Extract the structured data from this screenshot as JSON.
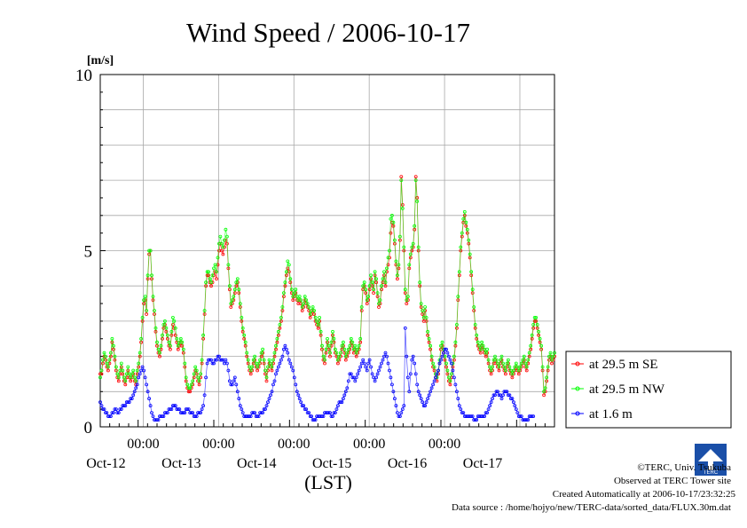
{
  "chart_data": {
    "type": "line",
    "title": "Wind Speed / 2006-10-17",
    "ylabel": "[m/s]",
    "xlabel": "(LST)",
    "ylim": [
      0,
      10
    ],
    "yticks": [
      0,
      5,
      10
    ],
    "xlim_days_label": "Oct-12 to Oct-17 (6 days)",
    "time_tick_label": "00:00",
    "day_labels": [
      "Oct-12",
      "Oct-13",
      "Oct-14",
      "Oct-15",
      "Oct-16",
      "Oct-17"
    ],
    "grid": true,
    "legend_position": "right-bottom",
    "sampling": "30 min",
    "series": [
      {
        "name": "at 29.5 m SE",
        "color": "#ff0000",
        "values": [
          1.5,
          1.5,
          1.8,
          2.0,
          1.9,
          1.7,
          1.6,
          1.8,
          2.0,
          2.4,
          2.2,
          1.9,
          1.6,
          1.4,
          1.3,
          1.5,
          1.7,
          1.5,
          1.3,
          1.2,
          1.4,
          1.6,
          1.4,
          1.3,
          1.4,
          1.5,
          1.3,
          1.2,
          1.5,
          1.7,
          2.0,
          2.4,
          3.0,
          3.5,
          3.6,
          3.2,
          4.2,
          4.9,
          5.0,
          4.2,
          3.6,
          3.2,
          2.7,
          2.3,
          2.1,
          2.0,
          2.2,
          2.5,
          2.8,
          2.9,
          2.7,
          2.5,
          2.3,
          2.2,
          2.6,
          2.9,
          2.8,
          2.6,
          2.4,
          2.2,
          2.3,
          2.4,
          2.3,
          2.1,
          1.7,
          1.3,
          1.1,
          1.0,
          1.0,
          1.1,
          1.2,
          1.4,
          1.6,
          1.5,
          1.3,
          1.2,
          1.4,
          1.8,
          2.5,
          3.2,
          4.0,
          4.3,
          4.3,
          4.1,
          4.0,
          4.1,
          4.3,
          4.4,
          4.2,
          4.6,
          5.0,
          5.2,
          5.0,
          4.9,
          5.1,
          5.3,
          5.2,
          4.5,
          3.9,
          3.4,
          3.5,
          3.6,
          3.8,
          4.0,
          4.1,
          3.8,
          3.4,
          3.0,
          2.7,
          2.5,
          2.3,
          2.0,
          1.8,
          1.6,
          1.5,
          1.6,
          1.8,
          1.9,
          1.7,
          1.6,
          1.7,
          1.8,
          2.0,
          2.1,
          1.8,
          1.5,
          1.3,
          1.6,
          1.8,
          1.7,
          1.6,
          1.8,
          2.0,
          2.2,
          2.4,
          2.6,
          2.8,
          3.0,
          3.3,
          3.7,
          4.0,
          4.3,
          4.5,
          4.4,
          4.1,
          3.8,
          3.6,
          3.7,
          3.8,
          3.6,
          3.5,
          3.6,
          3.5,
          3.3,
          3.4,
          3.6,
          3.5,
          3.4,
          3.3,
          3.1,
          3.2,
          3.3,
          3.2,
          3.0,
          2.9,
          2.8,
          3.0,
          2.6,
          2.2,
          1.9,
          1.8,
          2.1,
          2.4,
          2.2,
          2.0,
          2.3,
          2.6,
          2.4,
          2.1,
          2.0,
          1.8,
          1.9,
          2.0,
          2.2,
          2.3,
          2.1,
          1.9,
          2.0,
          2.1,
          2.2,
          2.4,
          2.3,
          2.1,
          2.2,
          2.0,
          2.1,
          2.2,
          2.4,
          3.3,
          3.9,
          4.0,
          3.8,
          3.5,
          3.6,
          3.9,
          4.2,
          4.0,
          3.8,
          4.3,
          4.1,
          3.7,
          3.4,
          3.5,
          3.9,
          4.1,
          4.3,
          4.0,
          4.4,
          4.6,
          4.8,
          5.5,
          5.8,
          5.7,
          5.2,
          4.6,
          4.2,
          4.5,
          5.3,
          7.1,
          6.3,
          5.0,
          3.8,
          3.5,
          3.6,
          4.5,
          4.8,
          5.0,
          5.1,
          5.6,
          7.1,
          6.5,
          5.0,
          4.0,
          3.4,
          3.2,
          3.0,
          3.3,
          3.0,
          2.6,
          2.4,
          2.2,
          1.9,
          1.7,
          1.6,
          1.4,
          1.3,
          1.5,
          1.8,
          2.2,
          2.3,
          2.1,
          1.9,
          1.7,
          1.5,
          1.3,
          1.2,
          1.4,
          1.7,
          1.9,
          2.3,
          2.8,
          3.6,
          4.3,
          5.0,
          5.4,
          5.8,
          6.0,
          5.7,
          5.5,
          5.2,
          4.8,
          4.3,
          3.8,
          3.3,
          2.8,
          2.5,
          2.3,
          2.2,
          2.1,
          2.3,
          2.2,
          2.1,
          2.0,
          2.1,
          1.8,
          1.6,
          1.5,
          1.6,
          1.8,
          1.9,
          1.8,
          1.7,
          1.6,
          1.8,
          1.9,
          1.7,
          1.6,
          1.5,
          1.7,
          1.8,
          1.6,
          1.5,
          1.4,
          1.5,
          1.6,
          1.7,
          1.6,
          1.5,
          1.6,
          1.7,
          1.8,
          1.9,
          1.7,
          1.6,
          1.8,
          2.0,
          2.2,
          2.5,
          2.8,
          3.0,
          3.0,
          2.8,
          2.6,
          2.4,
          2.2,
          1.6,
          0.9,
          1.0,
          1.3,
          1.6,
          1.9,
          2.0,
          1.8,
          1.9,
          2.0
        ]
      },
      {
        "name": "at 29.5 m NW",
        "color": "#00ff00",
        "values": [
          1.4,
          1.6,
          1.9,
          2.1,
          2.0,
          1.8,
          1.7,
          1.9,
          2.1,
          2.5,
          2.3,
          2.0,
          1.7,
          1.5,
          1.4,
          1.6,
          1.8,
          1.6,
          1.4,
          1.3,
          1.5,
          1.7,
          1.5,
          1.4,
          1.5,
          1.6,
          1.4,
          1.3,
          1.6,
          1.8,
          2.1,
          2.5,
          3.1,
          3.6,
          3.7,
          3.3,
          4.3,
          5.0,
          5.0,
          4.3,
          3.7,
          3.3,
          2.8,
          2.4,
          2.2,
          2.1,
          2.3,
          2.6,
          2.9,
          3.0,
          2.8,
          2.6,
          2.4,
          2.3,
          2.7,
          3.1,
          3.0,
          2.8,
          2.5,
          2.3,
          2.4,
          2.5,
          2.4,
          2.2,
          1.8,
          1.4,
          1.2,
          1.1,
          1.1,
          1.2,
          1.3,
          1.5,
          1.7,
          1.6,
          1.4,
          1.3,
          1.5,
          1.9,
          2.6,
          3.3,
          4.1,
          4.4,
          4.4,
          4.2,
          4.1,
          4.3,
          4.5,
          4.6,
          4.4,
          4.8,
          5.2,
          5.4,
          5.2,
          5.1,
          5.3,
          5.6,
          5.4,
          4.6,
          4.0,
          3.5,
          3.6,
          3.7,
          3.9,
          4.1,
          4.2,
          3.9,
          3.5,
          3.1,
          2.8,
          2.6,
          2.4,
          2.1,
          1.9,
          1.7,
          1.6,
          1.7,
          1.9,
          2.0,
          1.8,
          1.7,
          1.8,
          1.9,
          2.1,
          2.2,
          1.9,
          1.6,
          1.4,
          1.7,
          1.9,
          1.8,
          1.7,
          1.9,
          2.1,
          2.3,
          2.5,
          2.7,
          2.9,
          3.1,
          3.4,
          3.8,
          4.1,
          4.4,
          4.7,
          4.6,
          4.2,
          3.9,
          3.7,
          3.8,
          3.9,
          3.7,
          3.6,
          3.7,
          3.6,
          3.4,
          3.5,
          3.7,
          3.6,
          3.5,
          3.4,
          3.2,
          3.3,
          3.4,
          3.3,
          3.1,
          3.0,
          2.9,
          3.1,
          2.7,
          2.3,
          2.0,
          1.9,
          2.2,
          2.5,
          2.3,
          2.1,
          2.4,
          2.7,
          2.5,
          2.2,
          2.1,
          1.9,
          2.0,
          2.1,
          2.3,
          2.4,
          2.2,
          2.0,
          2.1,
          2.2,
          2.3,
          2.5,
          2.4,
          2.2,
          2.3,
          2.1,
          2.2,
          2.3,
          2.5,
          3.4,
          4.0,
          4.1,
          3.9,
          3.6,
          3.7,
          4.0,
          4.3,
          4.1,
          3.9,
          4.4,
          4.2,
          3.8,
          3.5,
          3.6,
          4.0,
          4.2,
          4.4,
          4.1,
          4.5,
          4.8,
          5.0,
          5.9,
          6.0,
          5.8,
          5.3,
          4.7,
          4.3,
          4.6,
          5.4,
          7.0,
          6.2,
          5.1,
          3.9,
          3.6,
          3.7,
          4.6,
          4.9,
          5.1,
          5.2,
          5.7,
          7.0,
          6.4,
          5.1,
          4.1,
          3.5,
          3.3,
          3.1,
          3.4,
          3.1,
          2.7,
          2.5,
          2.3,
          2.0,
          1.8,
          1.7,
          1.5,
          1.4,
          1.6,
          1.9,
          2.3,
          2.4,
          2.2,
          2.0,
          1.8,
          1.6,
          1.4,
          1.3,
          1.5,
          1.8,
          2.0,
          2.4,
          2.9,
          3.7,
          4.4,
          5.1,
          5.5,
          5.9,
          6.1,
          5.8,
          5.6,
          5.3,
          4.9,
          4.4,
          3.9,
          3.4,
          2.9,
          2.6,
          2.4,
          2.3,
          2.2,
          2.4,
          2.3,
          2.2,
          2.1,
          2.2,
          1.9,
          1.7,
          1.6,
          1.7,
          1.9,
          2.0,
          1.9,
          1.8,
          1.7,
          1.9,
          2.0,
          1.8,
          1.7,
          1.6,
          1.8,
          1.9,
          1.7,
          1.6,
          1.5,
          1.6,
          1.7,
          1.8,
          1.7,
          1.6,
          1.7,
          1.8,
          1.9,
          2.0,
          1.8,
          1.7,
          1.9,
          2.1,
          2.3,
          2.6,
          2.9,
          3.1,
          3.1,
          2.9,
          2.7,
          2.5,
          2.3,
          1.7,
          1.0,
          1.1,
          1.4,
          1.7,
          2.0,
          2.1,
          1.9,
          2.0,
          2.1
        ]
      },
      {
        "name": "at 1.6 m",
        "color": "#0000ff",
        "values": [
          0.7,
          0.6,
          0.5,
          0.5,
          0.4,
          0.4,
          0.3,
          0.3,
          0.3,
          0.4,
          0.4,
          0.5,
          0.5,
          0.4,
          0.4,
          0.5,
          0.5,
          0.6,
          0.6,
          0.6,
          0.7,
          0.7,
          0.7,
          0.8,
          0.8,
          0.9,
          1.0,
          1.1,
          1.2,
          1.4,
          1.5,
          1.6,
          1.7,
          1.6,
          1.4,
          1.2,
          1.0,
          0.8,
          0.6,
          0.4,
          0.3,
          0.2,
          0.2,
          0.2,
          0.2,
          0.3,
          0.3,
          0.3,
          0.3,
          0.4,
          0.4,
          0.4,
          0.5,
          0.5,
          0.5,
          0.6,
          0.6,
          0.6,
          0.5,
          0.5,
          0.5,
          0.4,
          0.4,
          0.4,
          0.4,
          0.5,
          0.5,
          0.5,
          0.4,
          0.4,
          0.4,
          0.3,
          0.3,
          0.3,
          0.4,
          0.4,
          0.4,
          0.5,
          0.6,
          0.9,
          1.4,
          1.8,
          1.9,
          1.9,
          1.9,
          1.8,
          1.8,
          1.9,
          1.9,
          2.0,
          2.0,
          1.9,
          1.9,
          1.9,
          1.8,
          1.9,
          1.8,
          1.6,
          1.3,
          1.2,
          1.2,
          1.3,
          1.4,
          1.2,
          1.0,
          0.8,
          0.6,
          0.5,
          0.4,
          0.3,
          0.3,
          0.3,
          0.3,
          0.3,
          0.3,
          0.4,
          0.4,
          0.4,
          0.3,
          0.3,
          0.3,
          0.4,
          0.4,
          0.4,
          0.5,
          0.5,
          0.6,
          0.7,
          0.8,
          0.9,
          1.0,
          1.2,
          1.3,
          1.5,
          1.6,
          1.7,
          1.8,
          1.9,
          2.0,
          2.2,
          2.3,
          2.2,
          2.1,
          1.9,
          1.8,
          1.7,
          1.6,
          1.4,
          1.2,
          1.0,
          0.9,
          0.8,
          0.7,
          0.6,
          0.6,
          0.5,
          0.5,
          0.4,
          0.4,
          0.3,
          0.3,
          0.2,
          0.2,
          0.2,
          0.3,
          0.3,
          0.3,
          0.3,
          0.3,
          0.3,
          0.4,
          0.4,
          0.4,
          0.4,
          0.4,
          0.3,
          0.3,
          0.4,
          0.4,
          0.5,
          0.6,
          0.7,
          0.7,
          0.7,
          0.8,
          0.9,
          1.0,
          1.1,
          1.3,
          1.5,
          1.5,
          1.4,
          1.4,
          1.3,
          1.4,
          1.5,
          1.6,
          1.7,
          1.8,
          1.9,
          1.8,
          1.7,
          1.6,
          1.8,
          1.9,
          1.7,
          1.5,
          1.4,
          1.3,
          1.4,
          1.5,
          1.6,
          1.7,
          1.8,
          1.9,
          2.0,
          2.1,
          2.0,
          1.8,
          1.6,
          1.4,
          1.2,
          1.0,
          0.8,
          0.6,
          0.4,
          0.3,
          0.3,
          0.4,
          0.5,
          0.6,
          2.8,
          2.0,
          1.4,
          1.0,
          1.5,
          1.9,
          2.0,
          1.8,
          1.5,
          1.2,
          1.0,
          0.9,
          0.8,
          0.7,
          0.6,
          0.6,
          0.7,
          0.8,
          0.9,
          1.0,
          1.1,
          1.2,
          1.3,
          1.4,
          1.5,
          1.6,
          1.8,
          1.9,
          2.0,
          2.1,
          2.2,
          2.2,
          2.1,
          2.0,
          1.9,
          1.8,
          1.6,
          1.4,
          1.2,
          1.0,
          0.8,
          0.6,
          0.5,
          0.4,
          0.4,
          0.3,
          0.3,
          0.3,
          0.3,
          0.3,
          0.3,
          0.3,
          0.2,
          0.2,
          0.2,
          0.3,
          0.3,
          0.3,
          0.3,
          0.3,
          0.3,
          0.4,
          0.4,
          0.5,
          0.6,
          0.7,
          0.8,
          0.9,
          0.9,
          1.0,
          1.0,
          0.9,
          0.9,
          0.8,
          0.9,
          1.0,
          1.0,
          1.0,
          0.9,
          0.9,
          0.8,
          0.8,
          0.7,
          0.6,
          0.5,
          0.4,
          0.3,
          0.3,
          0.3,
          0.2,
          0.2,
          0.2,
          0.2,
          0.2,
          0.3,
          0.3,
          0.3,
          0.3
        ]
      }
    ]
  },
  "footer": {
    "copyright": "©TERC, Univ. Tsukuba",
    "observed": "Observed at TERC Tower site",
    "created": "Created Automatically at 2006-10-17/23:32:25",
    "source": "Data source : /home/hojyo/new/TERC-data/sorted_data/FLUX.30m.dat"
  },
  "logo": {
    "label": "TERC"
  }
}
